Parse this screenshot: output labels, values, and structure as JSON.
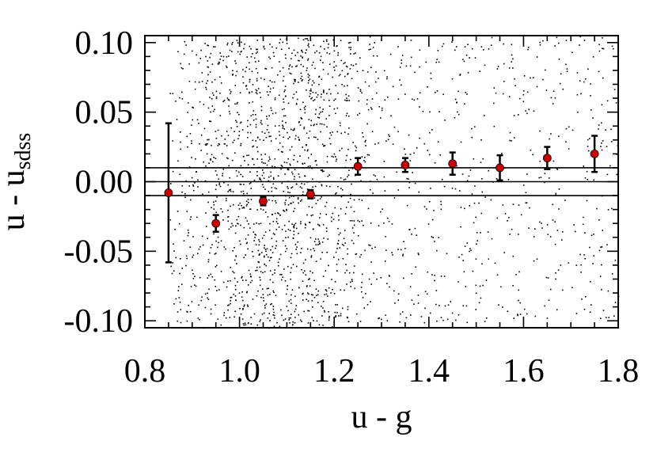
{
  "chart_data": {
    "type": "scatter",
    "title": "",
    "xlabel": "u - g",
    "ylabel": {
      "main": "u - u",
      "subscript": "sdss"
    },
    "xlim": [
      0.8,
      1.8
    ],
    "ylim": [
      -0.105,
      0.105
    ],
    "xticks": [
      {
        "value": 0.8,
        "label": "0.8"
      },
      {
        "value": 1.0,
        "label": "1.0"
      },
      {
        "value": 1.2,
        "label": "1.2"
      },
      {
        "value": 1.4,
        "label": "1.4"
      },
      {
        "value": 1.6,
        "label": "1.6"
      },
      {
        "value": 1.8,
        "label": "1.8"
      }
    ],
    "yticks": [
      {
        "value": 0.1,
        "label": "0.10"
      },
      {
        "value": 0.05,
        "label": "0.05"
      },
      {
        "value": 0.0,
        "label": "0.00"
      },
      {
        "value": -0.05,
        "label": "-0.05"
      },
      {
        "value": -0.1,
        "label": "-0.10"
      }
    ],
    "reference_lines_y": [
      0.01,
      0.0,
      -0.01
    ],
    "binned_means": {
      "x": [
        0.85,
        0.95,
        1.05,
        1.15,
        1.25,
        1.35,
        1.45,
        1.55,
        1.65,
        1.75
      ],
      "y": [
        -0.008,
        -0.03,
        -0.014,
        -0.009,
        0.011,
        0.012,
        0.013,
        0.01,
        0.017,
        0.02
      ],
      "yerr": [
        0.05,
        0.006,
        0.003,
        0.003,
        0.006,
        0.005,
        0.008,
        0.009,
        0.008,
        0.013
      ]
    },
    "marker_color": "#cc0000",
    "scatter_color": "#000000",
    "background_points": {
      "approx_count": 2200,
      "x_range": [
        0.85,
        1.8
      ],
      "y_range": [
        -0.105,
        0.105
      ],
      "note_density": "densest near x 0.95–1.25"
    }
  }
}
